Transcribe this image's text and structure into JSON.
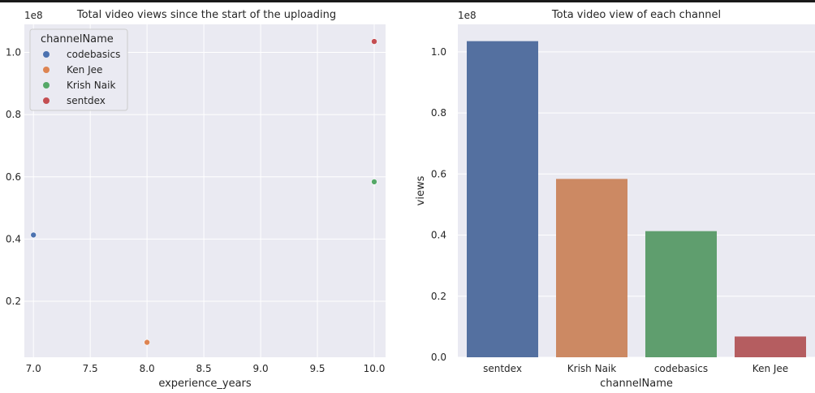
{
  "chart_data": [
    {
      "type": "scatter",
      "title": "Total video views since the start of the uploading",
      "xlabel": "experience_years",
      "ylabel": "",
      "y_offset_label": "1e8",
      "xlim": [
        6.92,
        10.1
      ],
      "ylim": [
        0.02,
        1.09
      ],
      "x_ticks": [
        7.0,
        7.5,
        8.0,
        8.5,
        9.0,
        9.5,
        10.0
      ],
      "x_tick_labels": [
        "7.0",
        "7.5",
        "8.0",
        "8.5",
        "9.0",
        "9.5",
        "10.0"
      ],
      "y_ticks": [
        0.2,
        0.4,
        0.6,
        0.8,
        1.0
      ],
      "y_tick_labels": [
        "0.2",
        "0.4",
        "0.6",
        "0.8",
        "1.0"
      ],
      "grid": true,
      "legend": {
        "title": "channelName",
        "placement": "top-left",
        "entries": [
          "codebasics",
          "Ken Jee",
          "Krish Naik",
          "sentdex"
        ]
      },
      "series": [
        {
          "name": "codebasics",
          "color": "#4c72b0",
          "points": [
            {
              "x": 7.0,
              "y": 0.413
            }
          ]
        },
        {
          "name": "Ken Jee",
          "color": "#dd8452",
          "points": [
            {
              "x": 8.0,
              "y": 0.068
            }
          ]
        },
        {
          "name": "Krish Naik",
          "color": "#55a868",
          "points": [
            {
              "x": 10.0,
              "y": 0.584
            }
          ]
        },
        {
          "name": "sentdex",
          "color": "#c44e52",
          "points": [
            {
              "x": 10.0,
              "y": 1.035
            }
          ]
        }
      ]
    },
    {
      "type": "bar",
      "title": "Tota video view of each channel",
      "xlabel": "channelName",
      "ylabel": "views",
      "y_offset_label": "1e8",
      "ylim": [
        0,
        1.09
      ],
      "y_ticks": [
        0.0,
        0.2,
        0.4,
        0.6,
        0.8,
        1.0
      ],
      "y_tick_labels": [
        "0.0",
        "0.2",
        "0.4",
        "0.6",
        "0.8",
        "1.0"
      ],
      "grid": true,
      "categories": [
        "sentdex",
        "Krish Naik",
        "codebasics",
        "Ken Jee"
      ],
      "values": [
        1.035,
        0.584,
        0.413,
        0.068
      ],
      "colors": [
        "#5470a0",
        "#cc8963",
        "#5f9e6e",
        "#b55d60"
      ]
    }
  ]
}
